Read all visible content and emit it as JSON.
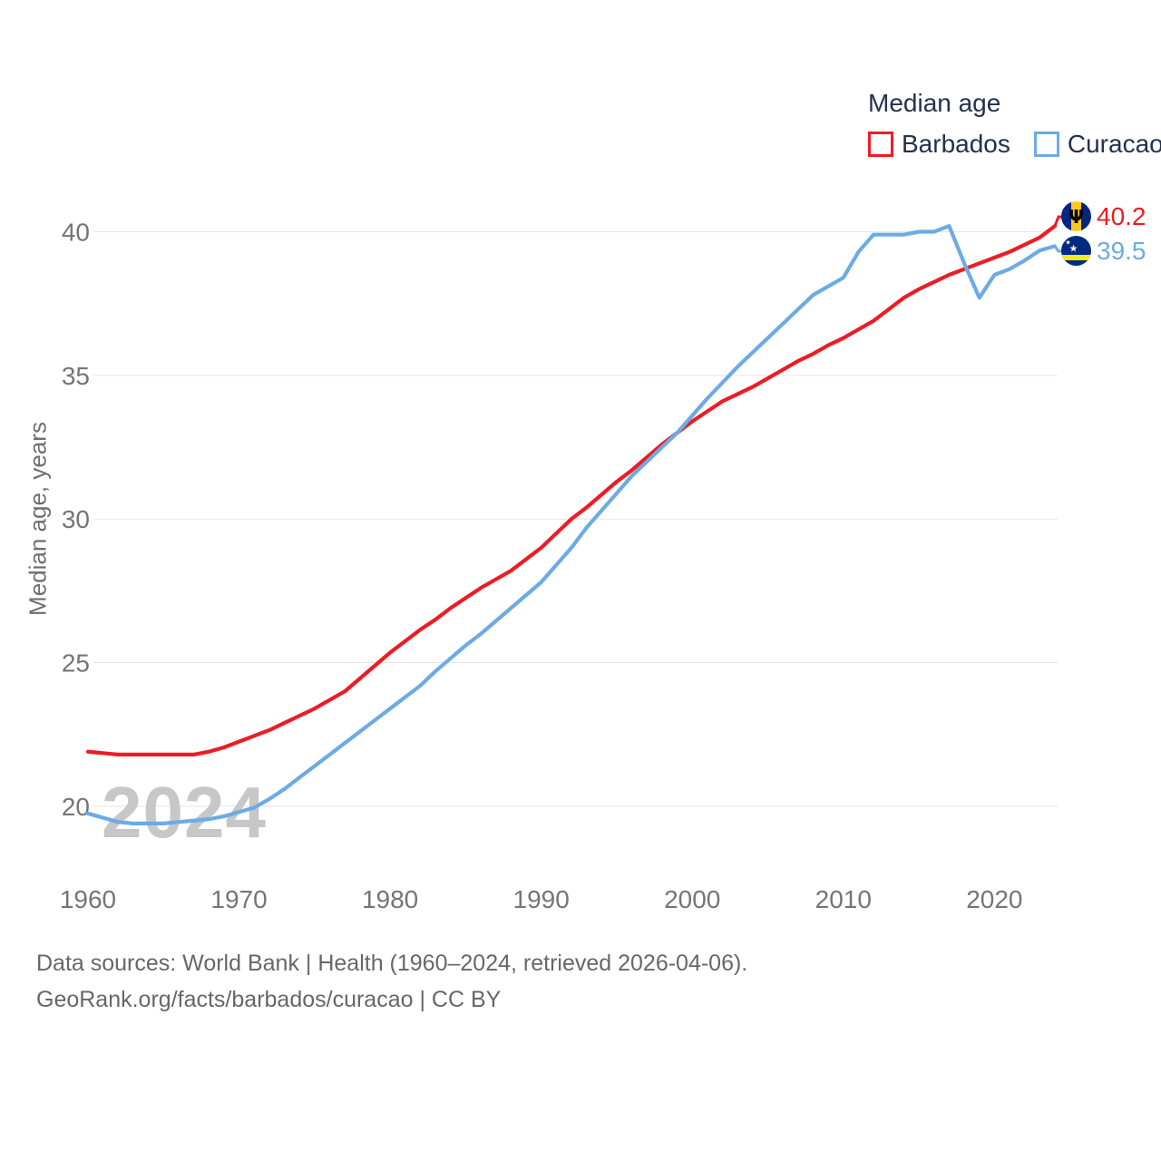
{
  "legend": {
    "title": "Median age",
    "items": [
      {
        "label": "Barbados",
        "color": "#ed1c24"
      },
      {
        "label": "Curacao",
        "color": "#6cabe5"
      }
    ]
  },
  "y_axis": {
    "label": "Median age, years",
    "ticks": [
      20,
      25,
      30,
      35,
      40
    ]
  },
  "x_axis": {
    "ticks": [
      1960,
      1970,
      1980,
      1990,
      2000,
      2010,
      2020
    ]
  },
  "watermark": "2024",
  "end_labels": [
    {
      "series": "Barbados",
      "value": "40.2",
      "flag": "barbados-flag"
    },
    {
      "series": "Curacao",
      "value": "39.5",
      "flag": "curacao-flag"
    }
  ],
  "footer": {
    "line1": "Data sources: World Bank | Health (1960–2024, retrieved 2026-04-06).",
    "line2": "GeoRank.org/facts/barbados/curacao | CC BY"
  },
  "chart_data": {
    "type": "line",
    "title": "Median age",
    "xlabel": "",
    "ylabel": "Median age, years",
    "xlim": [
      1960,
      2024
    ],
    "ylim": [
      18.8,
      41.5
    ],
    "grid": "horizontal",
    "legend_position": "top-right",
    "x": [
      1960,
      1961,
      1962,
      1963,
      1964,
      1965,
      1966,
      1967,
      1968,
      1969,
      1970,
      1971,
      1972,
      1973,
      1974,
      1975,
      1976,
      1977,
      1978,
      1979,
      1980,
      1981,
      1982,
      1983,
      1984,
      1985,
      1986,
      1987,
      1988,
      1989,
      1990,
      1991,
      1992,
      1993,
      1994,
      1995,
      1996,
      1997,
      1998,
      1999,
      2000,
      2001,
      2002,
      2003,
      2004,
      2005,
      2006,
      2007,
      2008,
      2009,
      2010,
      2011,
      2012,
      2013,
      2014,
      2015,
      2016,
      2017,
      2018,
      2019,
      2020,
      2021,
      2022,
      2023,
      2024
    ],
    "series": [
      {
        "name": "Barbados",
        "color": "#ed1c24",
        "end_label": "40.2",
        "values": [
          21.9,
          21.85,
          21.8,
          21.8,
          21.8,
          21.8,
          21.8,
          21.8,
          21.9,
          22.05,
          22.25,
          22.45,
          22.65,
          22.9,
          23.15,
          23.4,
          23.7,
          24.0,
          24.45,
          24.9,
          25.35,
          25.75,
          26.15,
          26.5,
          26.9,
          27.25,
          27.6,
          27.9,
          28.2,
          28.6,
          29.0,
          29.5,
          30.0,
          30.4,
          30.85,
          31.3,
          31.7,
          32.15,
          32.6,
          33.0,
          33.4,
          33.75,
          34.1,
          34.35,
          34.6,
          34.9,
          35.2,
          35.5,
          35.75,
          36.05,
          36.3,
          36.6,
          36.9,
          37.3,
          37.7,
          38.0,
          38.25,
          38.5,
          38.7,
          38.9,
          39.1,
          39.3,
          39.55,
          39.8,
          40.2
        ]
      },
      {
        "name": "Curacao",
        "color": "#6cabe5",
        "end_label": "39.5",
        "values": [
          19.75,
          19.6,
          19.45,
          19.4,
          19.4,
          19.4,
          19.45,
          19.5,
          19.55,
          19.65,
          19.8,
          19.95,
          20.25,
          20.6,
          21.0,
          21.4,
          21.8,
          22.2,
          22.6,
          23.0,
          23.4,
          23.8,
          24.2,
          24.7,
          25.15,
          25.6,
          26.0,
          26.45,
          26.9,
          27.35,
          27.8,
          28.4,
          29.0,
          29.7,
          30.3,
          30.9,
          31.5,
          32.0,
          32.5,
          33.0,
          33.6,
          34.2,
          34.75,
          35.3,
          35.8,
          36.3,
          36.8,
          37.3,
          37.8,
          38.1,
          38.4,
          39.3,
          39.9,
          39.9,
          39.9,
          40.0,
          40.0,
          40.2,
          38.9,
          37.7,
          38.5,
          38.7,
          39.0,
          39.35,
          39.5
        ]
      }
    ]
  }
}
